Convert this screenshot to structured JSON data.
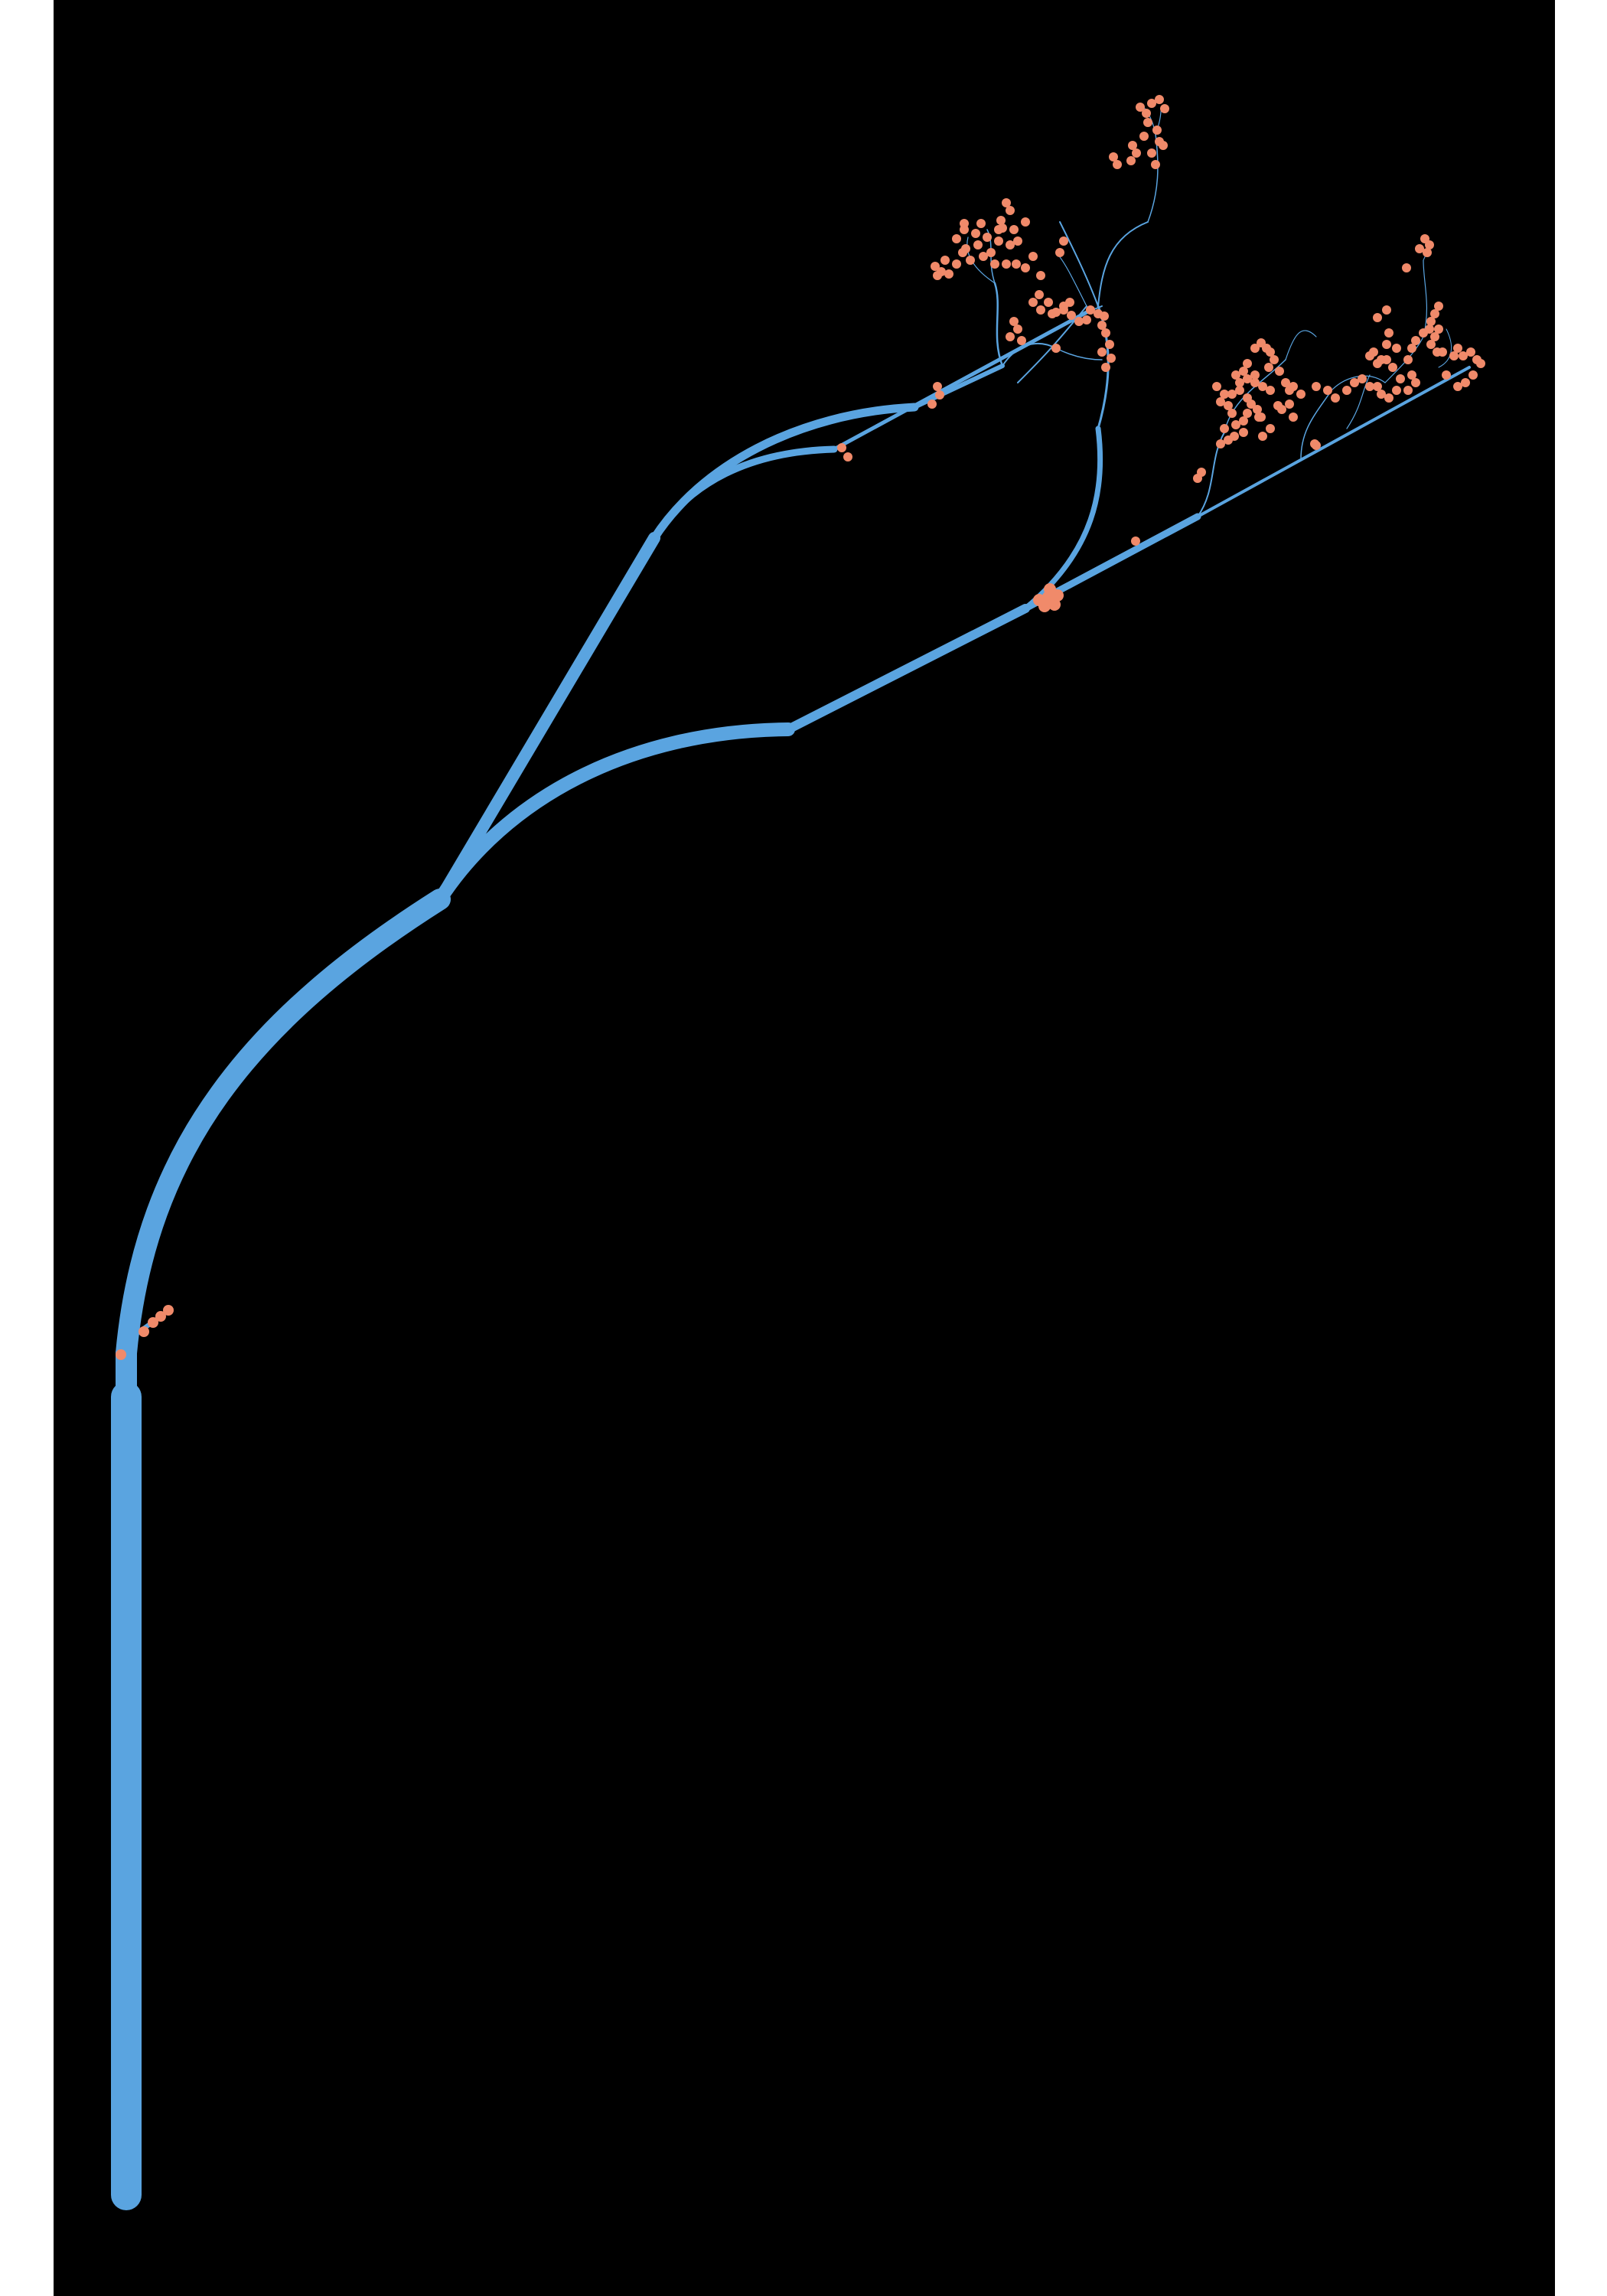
{
  "scene": {
    "subject": "generative-branching-tree",
    "background_color": "#000000",
    "margin_color": "#ffffff",
    "branch_color": "#5aa4e0",
    "blossom_color": "#f08a6a",
    "icons": [
      "branch-icon",
      "blossom-icon"
    ]
  }
}
